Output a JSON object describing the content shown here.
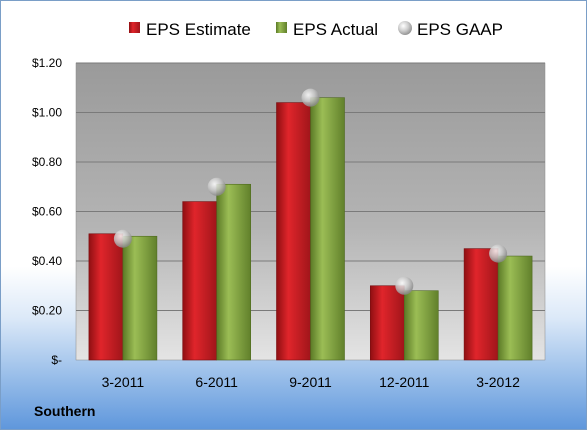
{
  "chart_data": {
    "type": "bar",
    "categories": [
      "3-2011",
      "6-2011",
      "9-2011",
      "12-2011",
      "3-2012"
    ],
    "series": [
      {
        "name": "EPS Estimate",
        "values": [
          0.51,
          0.64,
          1.04,
          0.3,
          0.45
        ],
        "color": "#c41e24",
        "kind": "bar"
      },
      {
        "name": "EPS Actual",
        "values": [
          0.5,
          0.71,
          1.06,
          0.28,
          0.42
        ],
        "color": "#7ea13e",
        "kind": "bar"
      },
      {
        "name": "EPS GAAP",
        "values": [
          0.49,
          0.7,
          1.06,
          0.3,
          0.43
        ],
        "color": "#c9c9c9",
        "kind": "marker"
      }
    ],
    "yticks": [
      "$-",
      "$0.20",
      "$0.40",
      "$0.60",
      "$0.80",
      "$1.00",
      "$1.20"
    ],
    "ylim": [
      0,
      1.2
    ],
    "grid": true,
    "legend_position": "top"
  },
  "footer": {
    "label": "Southern"
  }
}
